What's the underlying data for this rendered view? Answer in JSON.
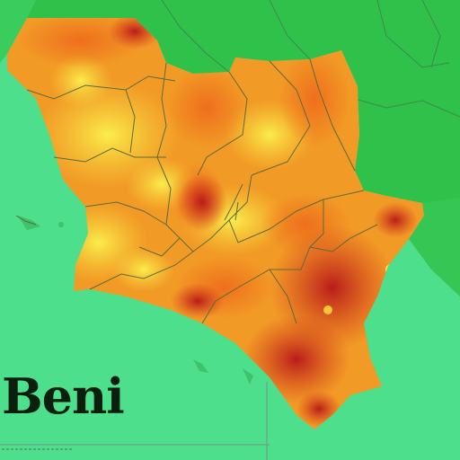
{
  "map": {
    "title": "Beni",
    "colors": {
      "sea": "#4ddf8c",
      "land_outside": "#2fc14a",
      "heat_high": "#c91f1a",
      "heat_mid": "#f07a1c",
      "heat_low": "#f7e94a",
      "border": "#5a6b3c"
    }
  }
}
